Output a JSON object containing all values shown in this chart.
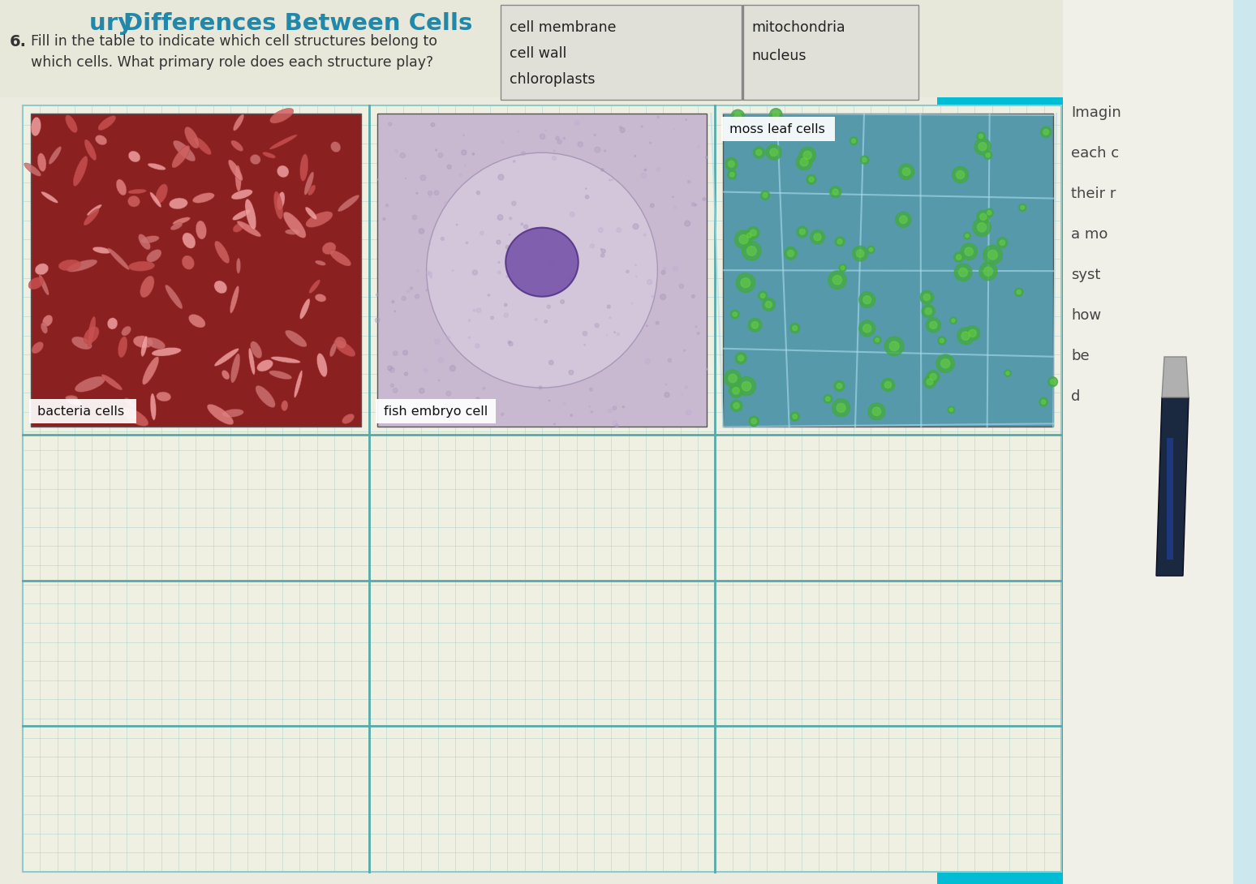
{
  "title": "Differences Between Cells",
  "title_prefix": "ury ",
  "question_number": "6.",
  "question_text_line1": "Fill in the table to indicate which cell structures belong to",
  "question_text_line2": "which cells. What primary role does each structure play?",
  "col1_structures": [
    "cell membrane",
    "cell wall",
    "chloroplasts"
  ],
  "col2_structures": [
    "mitochondria",
    "nucleus"
  ],
  "right_text_lines": [
    "Imagin",
    "each c",
    "their r",
    "a mo",
    "syst",
    "how",
    "be",
    "d"
  ],
  "cell_labels": [
    "bacteria cells",
    "fish embryo cell",
    "moss leaf cells"
  ],
  "bg_color": "#cce8ee",
  "page_bg_left": "#eef2ee",
  "page_bg_main": "#f0f0ea",
  "table_bg": "#f2f2ea",
  "grid_color": "#88cccc",
  "title_color": "#2288aa",
  "text_color": "#333333",
  "right_text_color": "#555555",
  "header_box_color": "#e8e8e0",
  "n_grid_rows": 40,
  "n_grid_cols": 60,
  "teal_color": "#00bcd4",
  "pen_body_color": "#1a2a4a",
  "pen_clip_color": "#aaaaaa",
  "pen_top_color": "#c8c8c8"
}
